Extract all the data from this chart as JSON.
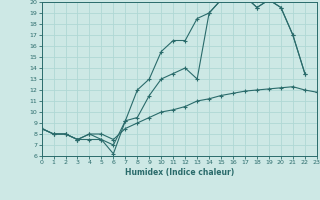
{
  "xlabel": "Humidex (Indice chaleur)",
  "xlim": [
    0,
    23
  ],
  "ylim": [
    6,
    20
  ],
  "xticks": [
    0,
    1,
    2,
    3,
    4,
    5,
    6,
    7,
    8,
    9,
    10,
    11,
    12,
    13,
    14,
    15,
    16,
    17,
    18,
    19,
    20,
    21,
    22,
    23
  ],
  "yticks": [
    6,
    7,
    8,
    9,
    10,
    11,
    12,
    13,
    14,
    15,
    16,
    17,
    18,
    19,
    20
  ],
  "background_color": "#cde8e5",
  "line_color": "#2a6b6b",
  "grid_color": "#b0d8d5",
  "line1_x": [
    0,
    1,
    2,
    3,
    4,
    5,
    6,
    7,
    8,
    9,
    10,
    11,
    12,
    13,
    14,
    15,
    16,
    17,
    18,
    19,
    20,
    21,
    22
  ],
  "line1_y": [
    8.5,
    8.0,
    8.0,
    7.5,
    7.5,
    7.5,
    6.2,
    9.2,
    12.0,
    13.0,
    15.5,
    16.5,
    16.5,
    18.5,
    19.0,
    20.2,
    20.2,
    20.5,
    19.5,
    20.2,
    19.5,
    17.0,
    13.5
  ],
  "line2_x": [
    0,
    1,
    2,
    3,
    4,
    5,
    6,
    7,
    8,
    9,
    10,
    11,
    12,
    13,
    14,
    15,
    16,
    17,
    18,
    19,
    20,
    21,
    22
  ],
  "line2_y": [
    8.5,
    8.0,
    8.0,
    7.5,
    8.0,
    7.5,
    7.0,
    9.2,
    9.5,
    11.5,
    13.0,
    13.5,
    14.0,
    13.0,
    19.0,
    20.2,
    20.2,
    20.5,
    19.5,
    20.2,
    19.5,
    17.0,
    13.5
  ],
  "line3_x": [
    0,
    1,
    2,
    3,
    4,
    5,
    6,
    7,
    8,
    9,
    10,
    11,
    12,
    13,
    14,
    15,
    16,
    17,
    18,
    19,
    20,
    21,
    22,
    23
  ],
  "line3_y": [
    8.5,
    8.0,
    8.0,
    7.5,
    8.0,
    8.0,
    7.5,
    8.5,
    9.0,
    9.5,
    10.0,
    10.2,
    10.5,
    11.0,
    11.2,
    11.5,
    11.7,
    11.9,
    12.0,
    12.1,
    12.2,
    12.3,
    12.0,
    11.8
  ]
}
